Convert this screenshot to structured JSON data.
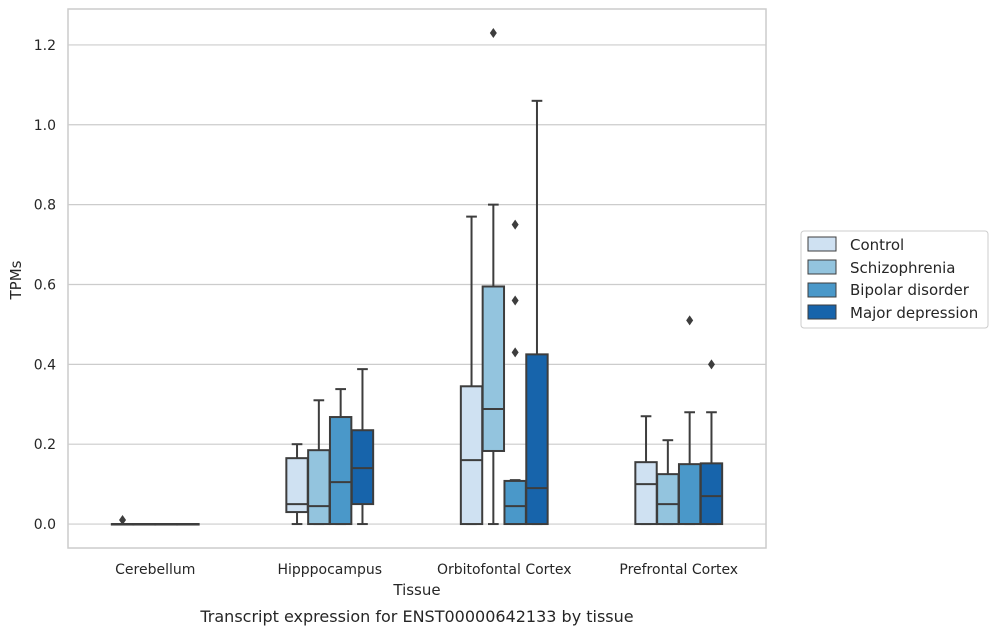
{
  "chart_data": {
    "type": "box",
    "title": "",
    "xlabel": "Tissue",
    "ylabel": "TPMs",
    "caption": "Transcript expression for ENST00000642133 by tissue",
    "ylim": [
      -0.06,
      1.29
    ],
    "yticks": [
      0.0,
      0.2,
      0.4,
      0.6,
      0.8,
      1.0,
      1.2
    ],
    "ytick_labels": [
      "0.0",
      "0.2",
      "0.4",
      "0.6",
      "0.8",
      "1.0",
      "1.2"
    ],
    "categories": [
      "Cerebellum",
      "Hipppocampus",
      "Orbitofontal Cortex",
      "Prefrontal Cortex"
    ],
    "grid": "horizontal",
    "legend_position": "right",
    "colors": [
      "#cfe1f2",
      "#93c4de",
      "#4a98c9",
      "#1764ab"
    ],
    "edge_color": "#3d3d3d",
    "series": [
      {
        "name": "Control",
        "boxes": [
          {
            "whislo": 0.0,
            "q1": 0.0,
            "med": 0.0,
            "q3": 0.0,
            "whishi": 0.0,
            "fliers": [
              0.01
            ]
          },
          {
            "whislo": 0.0,
            "q1": 0.03,
            "med": 0.05,
            "q3": 0.165,
            "whishi": 0.2,
            "fliers": []
          },
          {
            "whislo": 0.0,
            "q1": 0.0,
            "med": 0.16,
            "q3": 0.345,
            "whishi": 0.77,
            "fliers": []
          },
          {
            "whislo": 0.0,
            "q1": 0.0,
            "med": 0.1,
            "q3": 0.155,
            "whishi": 0.27,
            "fliers": []
          }
        ]
      },
      {
        "name": "Schizophrenia",
        "boxes": [
          {
            "whislo": 0.0,
            "q1": 0.0,
            "med": 0.0,
            "q3": 0.0,
            "whishi": 0.0,
            "fliers": []
          },
          {
            "whislo": 0.0,
            "q1": 0.0,
            "med": 0.045,
            "q3": 0.185,
            "whishi": 0.31,
            "fliers": []
          },
          {
            "whislo": 0.0,
            "q1": 0.183,
            "med": 0.288,
            "q3": 0.595,
            "whishi": 0.8,
            "fliers": [
              1.23
            ]
          },
          {
            "whislo": 0.0,
            "q1": 0.0,
            "med": 0.05,
            "q3": 0.125,
            "whishi": 0.21,
            "fliers": []
          }
        ]
      },
      {
        "name": "Bipolar disorder",
        "boxes": [
          {
            "whislo": 0.0,
            "q1": 0.0,
            "med": 0.0,
            "q3": 0.0,
            "whishi": 0.0,
            "fliers": []
          },
          {
            "whislo": 0.0,
            "q1": 0.0,
            "med": 0.105,
            "q3": 0.268,
            "whishi": 0.338,
            "fliers": []
          },
          {
            "whislo": 0.0,
            "q1": 0.0,
            "med": 0.045,
            "q3": 0.108,
            "whishi": 0.11,
            "fliers": [
              0.43,
              0.56,
              0.75
            ]
          },
          {
            "whislo": 0.0,
            "q1": 0.0,
            "med": 0.0,
            "q3": 0.15,
            "whishi": 0.28,
            "fliers": [
              0.51
            ]
          }
        ]
      },
      {
        "name": "Major depression",
        "boxes": [
          {
            "whislo": 0.0,
            "q1": 0.0,
            "med": 0.0,
            "q3": 0.0,
            "whishi": 0.0,
            "fliers": []
          },
          {
            "whislo": 0.0,
            "q1": 0.05,
            "med": 0.14,
            "q3": 0.235,
            "whishi": 0.388,
            "fliers": []
          },
          {
            "whislo": 0.0,
            "q1": 0.0,
            "med": 0.09,
            "q3": 0.425,
            "whishi": 1.06,
            "fliers": []
          },
          {
            "whislo": 0.0,
            "q1": 0.0,
            "med": 0.07,
            "q3": 0.152,
            "whishi": 0.28,
            "fliers": [
              0.4
            ]
          }
        ]
      }
    ]
  }
}
